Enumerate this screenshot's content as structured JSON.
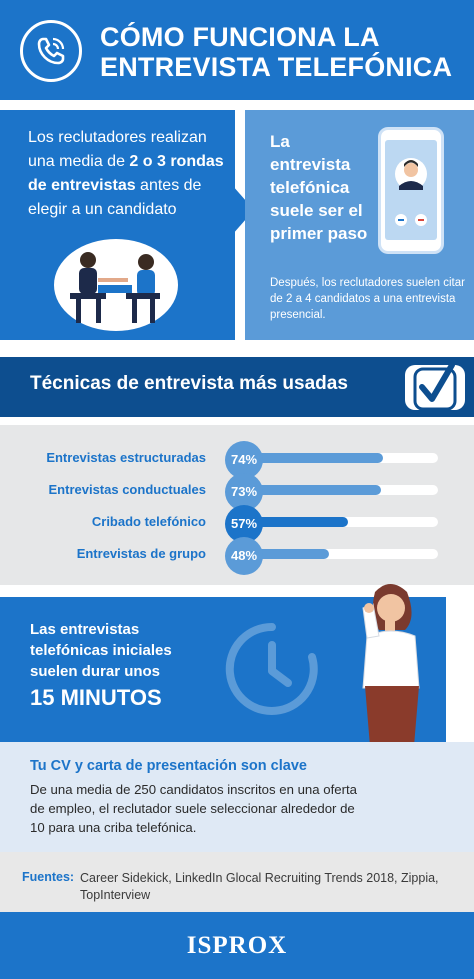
{
  "header": {
    "title_line1": "CÓMO FUNCIONA LA",
    "title_line2": "ENTREVISTA TELEFÓNICA"
  },
  "rounds": {
    "text_a": "Los reclutadores realizan una media de ",
    "highlight_a": "2 o 3 rondas de entrevistas",
    "text_b": " antes de elegir a un candidato"
  },
  "first_step": {
    "title": "La entrevista telefónica suele ser el primer paso",
    "note": "Después, los reclutadores suelen citar de 2 a 4 candidatos a una entrevista presencial."
  },
  "techniques": {
    "title": "Técnicas de entrevista más usadas",
    "items": [
      {
        "label": "Entrevistas estructuradas",
        "value_label": "74%",
        "value": 74,
        "circle_color": "#5b9bd8",
        "fill_color": "#5b9bd8"
      },
      {
        "label": "Entrevistas conductuales",
        "value_label": "73%",
        "value": 73,
        "circle_color": "#5b9bd8",
        "fill_color": "#5b9bd8"
      },
      {
        "label": "Cribado telefónico",
        "value_label": "57%",
        "value": 57,
        "circle_color": "#1c74c9",
        "fill_color": "#1c74c9"
      },
      {
        "label": "Entrevistas de grupo",
        "value_label": "48%",
        "value": 48,
        "circle_color": "#5b9bd8",
        "fill_color": "#5b9bd8"
      }
    ]
  },
  "duration": {
    "text": "Las entrevistas telefónicas iniciales suelen durar unos",
    "big": "15 MINUTOS"
  },
  "cv": {
    "title": "Tu CV y carta de presentación son clave",
    "text": "De una media de 250 candidatos inscritos en una oferta de empleo, el reclutador suele seleccionar alrededor de 10 para una criba telefónica."
  },
  "sources": {
    "label": "Fuentes:",
    "text": "Career Sidekick, LinkedIn Glocal Recruiting Trends 2018, Zippia, TopInterview"
  },
  "footer": {
    "logo": "ISPROX"
  },
  "icons": {
    "phone": "phone-icon",
    "check": "check-icon",
    "clock": "clock-icon",
    "interview": "interview-illustration",
    "mobile": "mobile-call-illustration",
    "woman": "woman-on-phone-illustration"
  },
  "colors": {
    "primary": "#1c74c9",
    "dark": "#0d4e8f",
    "light": "#5b9bd8",
    "grey": "#e6e7e8"
  }
}
